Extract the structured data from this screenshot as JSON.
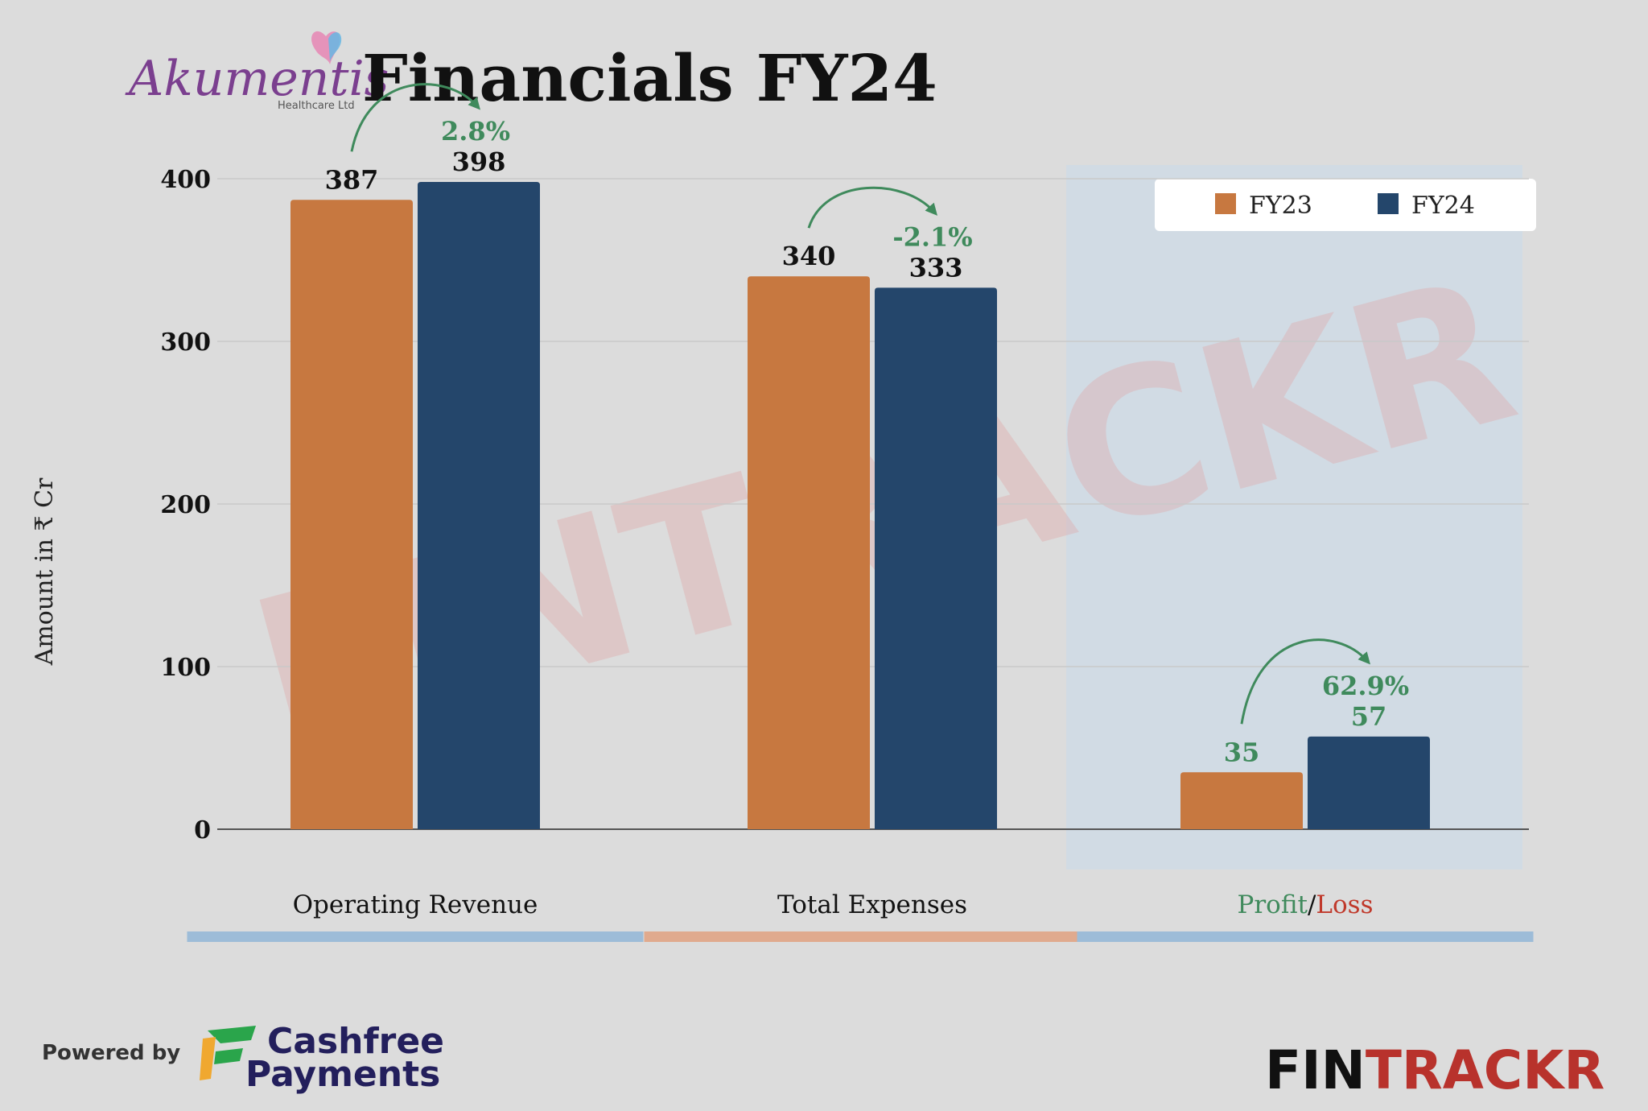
{
  "header": {
    "logo_name": "Akumentis",
    "logo_sub": "Healthcare Ltd",
    "title": "Financials FY24"
  },
  "colors": {
    "fy23": "#c77840",
    "fy24": "#24466b",
    "positive": "#3f8a5c",
    "negative": "#c0392b",
    "accent_blue": "#9dbcd8",
    "accent_peach": "#e0aa8e",
    "highlight_panel": "#cfdbe5",
    "logo_purple": "#7b3f8f"
  },
  "chart_data": {
    "type": "bar",
    "ylabel": "Amount in ₹ Cr",
    "ylim": [
      0,
      400
    ],
    "yticks": [
      0,
      100,
      200,
      300,
      400
    ],
    "grid": true,
    "legend_position": "top-right",
    "categories": [
      "Operating Revenue",
      "Total Expenses",
      "Profit/Loss"
    ],
    "category_label_parts": [
      [
        {
          "text": "Operating Revenue",
          "tone": "normal"
        }
      ],
      [
        {
          "text": "Total Expenses",
          "tone": "normal"
        }
      ],
      [
        {
          "text": "Profit",
          "tone": "positive"
        },
        {
          "text": "/",
          "tone": "normal"
        },
        {
          "text": "Loss",
          "tone": "negative"
        }
      ]
    ],
    "series": [
      {
        "name": "FY23",
        "values": [
          387,
          340,
          35
        ]
      },
      {
        "name": "FY24",
        "values": [
          398,
          333,
          57
        ]
      }
    ],
    "changes": [
      "2.8%",
      "-2.1%",
      "62.9%"
    ]
  },
  "footer": {
    "powered_by": "Powered by",
    "partner_line1": "Cashfree",
    "partner_line2": "Payments",
    "brand_part1": "FIN",
    "brand_part2": "TRACKR"
  },
  "watermark": "FINTRACKR"
}
